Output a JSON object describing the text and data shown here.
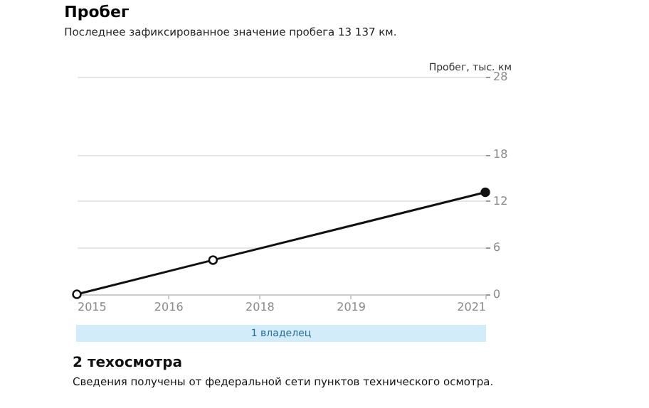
{
  "chart_data": {
    "type": "line",
    "title": "Пробег",
    "subtitle": "Последнее зафиксированное значение пробега 13 137 км.",
    "ylabel": "Пробег, тыс. км",
    "x": [
      2015,
      2017.0,
      2021
    ],
    "series": [
      {
        "color": "#111111",
        "values": [
          0,
          4.4,
          13.137
        ],
        "colors": [
          "#ffffff",
          "#ffffff",
          "#111111"
        ]
      }
    ],
    "xlim": [
      2015,
      2021
    ],
    "xticks": [
      2015,
      {
        "value": 2016.34,
        "label": "2016"
      },
      {
        "value": 2017.68,
        "label": "2018"
      },
      {
        "value": 2019.02,
        "label": "2019"
      },
      2021
    ],
    "ylim": [
      0,
      28
    ],
    "yticks": [
      0,
      6,
      12,
      18,
      28
    ],
    "grid": "y",
    "marker": "circle",
    "line_style": "solid",
    "legend": false,
    "bands": [
      {
        "axis": "x",
        "from": 2015,
        "to": 2021,
        "label": "1 владелец"
      }
    ],
    "annotations": [
      "2 техосмотра",
      "Сведения получены от федеральной сети пунктов технического осмотра."
    ]
  }
}
